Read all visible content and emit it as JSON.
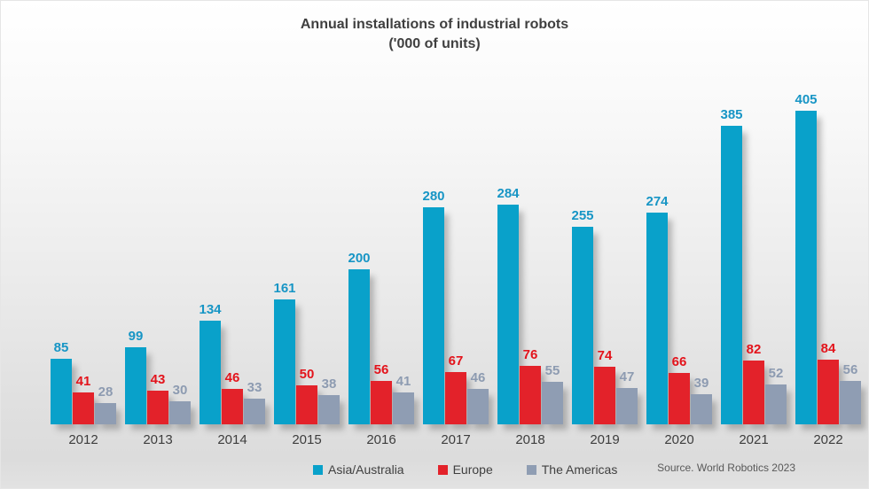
{
  "chart_data": {
    "type": "bar",
    "title": "Annual installations of industrial robots",
    "subtitle": "('000 of units)",
    "categories": [
      "2012",
      "2013",
      "2014",
      "2015",
      "2016",
      "2017",
      "2018",
      "2019",
      "2020",
      "2021",
      "2022"
    ],
    "series": [
      {
        "name": "Asia/Australia",
        "color": "#09A1CA",
        "label_color": "#1795C5",
        "values": [
          85,
          99,
          134,
          161,
          200,
          280,
          284,
          255,
          274,
          385,
          405
        ]
      },
      {
        "name": "Europe",
        "color": "#E3222A",
        "label_color": "#E3131B",
        "values": [
          41,
          43,
          46,
          50,
          56,
          67,
          76,
          74,
          66,
          82,
          84
        ]
      },
      {
        "name": "The Americas",
        "color": "#8F9DB3",
        "label_color": "#8D9BB1",
        "values": [
          28,
          30,
          33,
          38,
          41,
          46,
          55,
          47,
          39,
          52,
          56
        ]
      }
    ],
    "xlabel": "",
    "ylabel": "",
    "ylim": [
      0,
      440
    ],
    "grid": false,
    "data_labels": true,
    "legend_position": "bottom",
    "source": "Source. World Robotics 2023"
  },
  "page": {
    "background_top": "#FFFFFF",
    "background_bottom": "#DCDCDC",
    "title_color": "#3F3F3F",
    "axis_label_color": "#3D3D3D"
  }
}
